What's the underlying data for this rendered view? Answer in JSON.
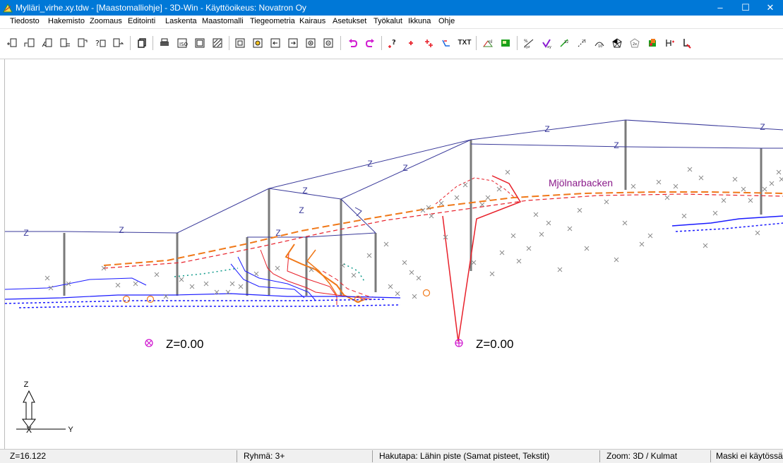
{
  "window": {
    "title": "Mylläri_virhe.xy.tdw - [Maastomalliohje] - 3D-Win - Käyttöoikeus: Novatron Oy",
    "minimize": "–",
    "maximize": "☐",
    "close": "✕"
  },
  "menu": [
    "Tiedosto",
    "Hakemisto",
    "Zoomaus",
    "Editointi",
    "Laskenta",
    "Maastomalli",
    "Tiegeometria",
    "Kairaus",
    "Asetukset",
    "Työkalut",
    "Ikkuna",
    "Ohje"
  ],
  "toolbar": {
    "text_button": "TXT",
    "icons": [
      "new-file-icon",
      "open-file-icon",
      "point-file-icon",
      "save-file-icon",
      "save-as-icon",
      "question-file-icon",
      "export-file-icon",
      "copy-icon",
      "print-icon",
      "print-preview-icon",
      "page-setup-icon",
      "plot-icon",
      "zoom-all-icon",
      "zoom-window-icon",
      "pan-left-icon",
      "pan-right-icon",
      "zoom-in-icon",
      "zoom-out-icon",
      "undo-icon",
      "redo-icon",
      "point-info-icon",
      "add-point-icon",
      "move-point-icon",
      "line-icon",
      "text-icon",
      "terrain-model-icon",
      "grid-icon",
      "coordinate-icon",
      "check-icon",
      "height-icon",
      "slope-icon",
      "contour-icon",
      "3d-view-icon",
      "volume-icon",
      "color-icon",
      "tools-icon",
      "pen-icon"
    ]
  },
  "canvas": {
    "label_place": "Mjölnarbacken",
    "label_z1": "Z=0.00",
    "label_z2": "Z=0.00",
    "edge_marker": "Z",
    "axis_z": "Z",
    "axis_x": "X",
    "axis_y": "Y",
    "colors": {
      "profile": "#3a3a9a",
      "post": "#7a7a7a",
      "points": "#8c8c8c",
      "red": "#e8202a",
      "orange": "#f07818",
      "blue": "#1a1aff",
      "magenta": "#d01ad0",
      "teal": "#0f9a8a",
      "place": "#8a1a8a"
    }
  },
  "status": {
    "z": "Z=16.122",
    "group": "Ryhmä: 3+",
    "search": "Hakutapa: Lähin piste (Samat pisteet, Tekstit)",
    "zoom": "Zoom: 3D  /  Kulmat",
    "mask": "Maski ei käytössä"
  }
}
